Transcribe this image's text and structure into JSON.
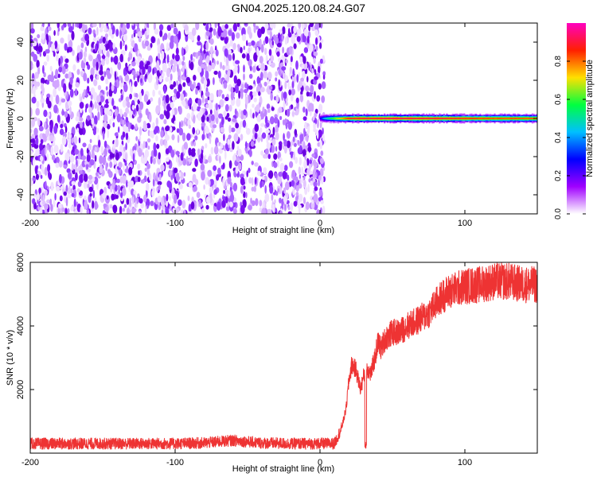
{
  "title": "GN04.2025.120.08.24.G07",
  "chart_data": [
    {
      "type": "heatmap",
      "xlabel": "Height of straight line (km)",
      "ylabel": "Frequency (Hz)",
      "xlim": [
        -200,
        150
      ],
      "ylim": [
        -50,
        50
      ],
      "xticks": [
        -200,
        -100,
        0,
        100
      ],
      "yticks": [
        -40,
        -20,
        0,
        20,
        40
      ],
      "grid": false,
      "colorbar": {
        "label": "Normalized spectral amplitude",
        "range": [
          0,
          1
        ],
        "ticks": [
          0.0,
          0.2,
          0.4,
          0.6,
          0.8
        ],
        "colors": [
          "#ffffff",
          "#a000ff",
          "#0000ff",
          "#00c0ff",
          "#00ff40",
          "#ffe000",
          "#ff2000",
          "#ff00c0"
        ]
      },
      "noise_region_x": [
        -200,
        3
      ],
      "ridge": [
        {
          "x": 0,
          "freq": 0,
          "amplitude": 0.25
        },
        {
          "x": 3,
          "freq": 0,
          "amplitude": 0.45
        },
        {
          "x": 20,
          "freq": 0,
          "amplitude": 0.9
        },
        {
          "x": 50,
          "freq": 0,
          "amplitude": 0.95
        },
        {
          "x": 90,
          "freq": 0,
          "amplitude": 0.9
        },
        {
          "x": 120,
          "freq": 0,
          "amplitude": 0.85
        },
        {
          "x": 150,
          "freq": 0,
          "amplitude": 0.85
        }
      ]
    },
    {
      "type": "line",
      "xlabel": "Height of straight line (km)",
      "ylabel": "SNR (10 * v/v)",
      "xlim": [
        -200,
        150
      ],
      "ylim": [
        0,
        6000
      ],
      "xticks": [
        -200,
        -100,
        0,
        100
      ],
      "yticks": [
        2000,
        4000,
        6000
      ],
      "grid": false,
      "series": [
        {
          "color": "#ee3333",
          "x": [
            -200,
            -150,
            -100,
            -80,
            -60,
            -40,
            -20,
            0,
            10,
            15,
            18,
            20,
            22,
            25,
            28,
            30,
            32,
            35,
            38,
            40,
            42,
            45,
            50,
            55,
            60,
            65,
            70,
            75,
            80,
            85,
            90,
            100,
            110,
            120,
            130,
            140,
            150
          ],
          "y": [
            300,
            300,
            300,
            320,
            400,
            320,
            300,
            300,
            300,
            800,
            1400,
            2300,
            2800,
            2600,
            2000,
            2400,
            2700,
            2500,
            3000,
            3500,
            3300,
            3600,
            3800,
            3800,
            4000,
            4100,
            4250,
            4400,
            4700,
            4950,
            5100,
            5250,
            5300,
            5400,
            5400,
            5300,
            5300
          ]
        }
      ]
    }
  ]
}
